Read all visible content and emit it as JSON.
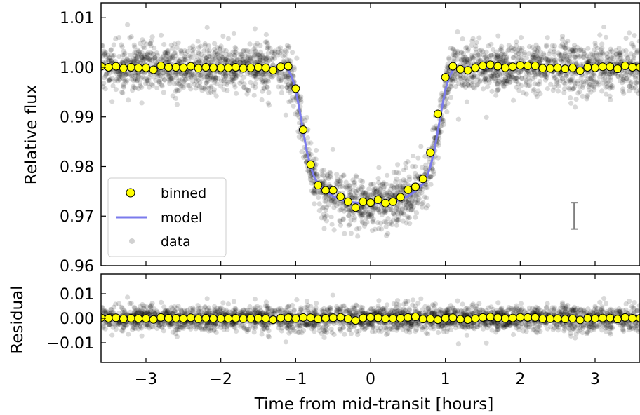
{
  "chart_data": [
    {
      "panel": "top",
      "type": "scatter",
      "xlabel": "",
      "ylabel": "Relative flux",
      "xlim": [
        -3.6,
        3.6
      ],
      "ylim": [
        0.96,
        1.013
      ],
      "y_ticks": [
        0.96,
        0.97,
        0.98,
        0.99,
        1.0,
        1.01
      ],
      "y_tick_labels": [
        "0.96",
        "0.97",
        "0.98",
        "0.99",
        "1.00",
        "1.01"
      ],
      "x_ticks": [
        -3,
        -2,
        -1,
        0,
        1,
        2,
        3
      ],
      "legend": {
        "placement": "lower-left",
        "entries": [
          "binned",
          "model",
          "data"
        ]
      },
      "colors": {
        "binned": "#ffff00",
        "binned_edge": "#000000",
        "model": "#7b7bec",
        "data": "#000000",
        "errorbar": "#808080"
      },
      "series": [
        {
          "name": "binned",
          "x": [
            -3.6,
            -3.5,
            -3.4,
            -3.3,
            -3.2,
            -3.1,
            -3.0,
            -2.9,
            -2.8,
            -2.7,
            -2.6,
            -2.5,
            -2.4,
            -2.3,
            -2.2,
            -2.1,
            -2.0,
            -1.9,
            -1.8,
            -1.7,
            -1.6,
            -1.5,
            -1.4,
            -1.3,
            -1.2,
            -1.1,
            -1.0,
            -0.9,
            -0.8,
            -0.7,
            -0.6,
            -0.5,
            -0.4,
            -0.3,
            -0.2,
            -0.1,
            0.0,
            0.1,
            0.2,
            0.3,
            0.4,
            0.5,
            0.6,
            0.7,
            0.8,
            0.9,
            1.0,
            1.1,
            1.2,
            1.3,
            1.4,
            1.5,
            1.6,
            1.7,
            1.8,
            1.9,
            2.0,
            2.1,
            2.2,
            2.3,
            2.4,
            2.5,
            2.6,
            2.7,
            2.8,
            2.9,
            3.0,
            3.1,
            3.2,
            3.3,
            3.4,
            3.5,
            3.6
          ],
          "y": [
            1.0002,
            1.0,
            1.0002,
            0.9998,
            1.0,
            0.9999,
            0.9999,
            0.9995,
            1.0003,
            1.0,
            1.0,
            0.9999,
            1.0002,
            0.9998,
            1.0,
            0.9999,
            0.9999,
            0.9999,
            1.0,
            0.9998,
            0.9999,
            1.0,
            0.9999,
            0.9994,
            1.0001,
            1.0002,
            0.9957,
            0.9874,
            0.9804,
            0.9762,
            0.9752,
            0.9752,
            0.9739,
            0.9729,
            0.9717,
            0.9729,
            0.9727,
            0.9733,
            0.9726,
            0.9729,
            0.9738,
            0.9753,
            0.9759,
            0.9775,
            0.9828,
            0.9906,
            0.998,
            1.0002,
            0.9996,
            0.9994,
            0.9999,
            1.0003,
            1.0005,
            1.0002,
            0.9999,
            1.0001,
            1.0004,
            1.0003,
            1.0003,
            0.9998,
            0.9998,
            0.9999,
            0.9997,
            0.9999,
            0.9993,
            1.0,
            0.9999,
            1.0001,
            1.0001,
            0.9997,
            1.0003,
            1.0,
            1.0
          ]
        },
        {
          "name": "model",
          "type": "line",
          "x": [
            -3.6,
            -1.12,
            -1.05,
            -1.0,
            -0.95,
            -0.9,
            -0.85,
            -0.8,
            -0.75,
            -0.7,
            -0.6,
            -0.5,
            -0.4,
            -0.3,
            -0.2,
            -0.1,
            0.0,
            0.1,
            0.2,
            0.3,
            0.4,
            0.5,
            0.6,
            0.7,
            0.75,
            0.8,
            0.85,
            0.9,
            0.95,
            1.0,
            1.05,
            1.12,
            3.6
          ],
          "y": [
            1.0,
            1.0,
            0.998,
            0.9955,
            0.9915,
            0.9872,
            0.983,
            0.98,
            0.9778,
            0.9765,
            0.975,
            0.974,
            0.9733,
            0.9729,
            0.9727,
            0.9726,
            0.9726,
            0.9726,
            0.9727,
            0.9729,
            0.9733,
            0.974,
            0.975,
            0.9765,
            0.9778,
            0.98,
            0.983,
            0.9872,
            0.9915,
            0.9955,
            0.998,
            1.0,
            1.0
          ]
        },
        {
          "name": "data",
          "n_points": 3000,
          "scatter_sigma": 0.0025,
          "alpha": 0.15
        }
      ],
      "errorbar": {
        "x": 2.72,
        "y_low": 0.9674,
        "y_high": 0.9727
      }
    },
    {
      "panel": "bottom",
      "type": "scatter",
      "xlabel": "Time from mid-transit [hours]",
      "ylabel": "Residual",
      "xlim": [
        -3.6,
        3.6
      ],
      "ylim": [
        -0.018,
        0.018
      ],
      "y_ticks": [
        -0.01,
        0.0,
        0.01
      ],
      "y_tick_labels": [
        "−0.01",
        "0.00",
        "0.01"
      ],
      "x_ticks": [
        -3,
        -2,
        -1,
        0,
        1,
        2,
        3
      ],
      "x_tick_labels": [
        "−3",
        "−2",
        "−1",
        "0",
        "1",
        "2",
        "3"
      ],
      "series": [
        {
          "name": "binned",
          "x": [
            -3.6,
            -3.5,
            -3.4,
            -3.3,
            -3.2,
            -3.1,
            -3.0,
            -2.9,
            -2.8,
            -2.7,
            -2.6,
            -2.5,
            -2.4,
            -2.3,
            -2.2,
            -2.1,
            -2.0,
            -1.9,
            -1.8,
            -1.7,
            -1.6,
            -1.5,
            -1.4,
            -1.3,
            -1.2,
            -1.1,
            -1.0,
            -0.9,
            -0.8,
            -0.7,
            -0.6,
            -0.5,
            -0.4,
            -0.3,
            -0.2,
            -0.1,
            0.0,
            0.1,
            0.2,
            0.3,
            0.4,
            0.5,
            0.6,
            0.7,
            0.8,
            0.9,
            1.0,
            1.1,
            1.2,
            1.3,
            1.4,
            1.5,
            1.6,
            1.7,
            1.8,
            1.9,
            2.0,
            2.1,
            2.2,
            2.3,
            2.4,
            2.5,
            2.6,
            2.7,
            2.8,
            2.9,
            3.0,
            3.1,
            3.2,
            3.3,
            3.4,
            3.5,
            3.6
          ],
          "y": [
            0.0002,
            0.0,
            0.0002,
            -0.0002,
            0.0,
            -0.0001,
            -0.0001,
            -0.0005,
            0.0003,
            0.0,
            0.0,
            -0.0001,
            0.0002,
            -0.0002,
            0.0,
            -0.0001,
            -0.0001,
            -0.0001,
            0.0,
            -0.0002,
            -0.0001,
            0.0,
            -0.0001,
            -0.0006,
            0.0001,
            0.0002,
            -0.0001,
            0.0003,
            0.0002,
            -0.0003,
            0.0,
            0.0002,
            0.0004,
            -0.0002,
            -0.0009,
            0.0001,
            0.0003,
            0.0002,
            -0.0002,
            -0.0001,
            0.0,
            0.0003,
            0.0006,
            -0.0003,
            -0.0002,
            -0.0006,
            0.0,
            0.0002,
            -0.0004,
            -0.0006,
            -0.0001,
            0.0003,
            0.0005,
            0.0002,
            -0.0001,
            0.0001,
            0.0004,
            0.0003,
            0.0003,
            -0.0002,
            -0.0002,
            -0.0001,
            -0.0003,
            -0.0001,
            -0.0007,
            0.0,
            -0.0001,
            0.0001,
            0.0001,
            -0.0003,
            0.0003,
            0.0,
            0.0
          ]
        },
        {
          "name": "data",
          "n_points": 3000,
          "scatter_sigma": 0.0025,
          "alpha": 0.15
        }
      ]
    }
  ]
}
